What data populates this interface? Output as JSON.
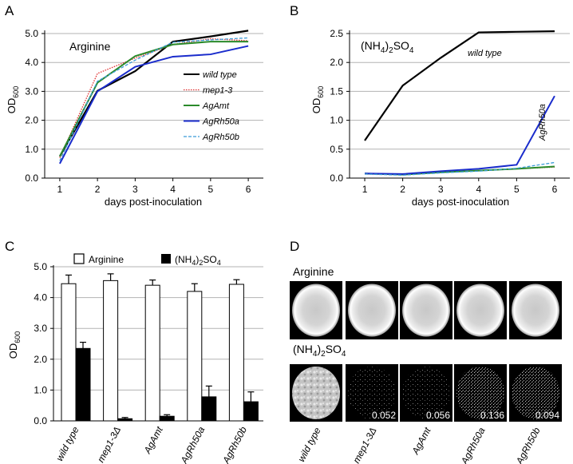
{
  "panels": {
    "A": {
      "letter": "A"
    },
    "B": {
      "letter": "B"
    },
    "C": {
      "letter": "C"
    },
    "D": {
      "letter": "D",
      "row1_label": "Arginine",
      "row2_label": "(NH4)2SO4",
      "strains": [
        "wild type",
        "mep1-3Δ",
        "AgAmt",
        "AgRh50a",
        "AgRh50b"
      ],
      "values": [
        "",
        "0.052",
        "0.056",
        "0.136",
        "0.094"
      ]
    }
  },
  "chart_data": [
    {
      "id": "A",
      "type": "line",
      "inset_label": "Arginine",
      "xlabel": "days post-inoculation",
      "ylabel": "OD600",
      "x": [
        1,
        2,
        3,
        4,
        5,
        6
      ],
      "ylim": [
        0.0,
        5.0
      ],
      "yticks": [
        "0.0",
        "1.0",
        "2.0",
        "3.0",
        "4.0",
        "5.0"
      ],
      "grid": true,
      "legend": "right",
      "series": [
        {
          "name": "wild type",
          "color": "#000000",
          "style": "solid",
          "values": [
            0.75,
            3.02,
            3.7,
            4.72,
            4.9,
            5.1
          ]
        },
        {
          "name": "mep1-3",
          "color": "#e03030",
          "style": "dotted",
          "values": [
            0.7,
            3.62,
            4.15,
            4.62,
            4.82,
            4.75
          ]
        },
        {
          "name": "AgAmt",
          "color": "#2a8a2a",
          "style": "solid",
          "values": [
            0.75,
            3.3,
            4.22,
            4.62,
            4.72,
            4.72
          ]
        },
        {
          "name": "AgRh50a",
          "color": "#1a2ccc",
          "style": "solid",
          "values": [
            0.5,
            3.0,
            3.85,
            4.2,
            4.28,
            4.57
          ]
        },
        {
          "name": "AgRh50b",
          "color": "#3b9bd6",
          "style": "dashed",
          "values": [
            0.6,
            3.35,
            4.08,
            4.7,
            4.78,
            4.85
          ]
        }
      ]
    },
    {
      "id": "B",
      "type": "line",
      "inset_label": "(NH4)2SO4",
      "xlabel": "days post-inoculation",
      "ylabel": "OD600",
      "x": [
        1,
        2,
        3,
        4,
        5,
        6
      ],
      "ylim": [
        0.0,
        2.5
      ],
      "yticks": [
        "0.0",
        "0.5",
        "1.0",
        "1.5",
        "2.0",
        "2.5"
      ],
      "grid": true,
      "annotations": [
        "wild type",
        "AgRh50a"
      ],
      "series": [
        {
          "name": "wild type",
          "color": "#000000",
          "style": "solid",
          "values": [
            0.65,
            1.6,
            2.08,
            2.52,
            2.53,
            2.54
          ]
        },
        {
          "name": "mep1-3",
          "color": "#e03030",
          "style": "dotted",
          "values": [
            0.07,
            0.06,
            0.1,
            0.13,
            0.16,
            0.19
          ]
        },
        {
          "name": "AgAmt",
          "color": "#2a8a2a",
          "style": "solid",
          "values": [
            0.08,
            0.06,
            0.1,
            0.13,
            0.16,
            0.2
          ]
        },
        {
          "name": "AgRh50a",
          "color": "#1a2ccc",
          "style": "solid",
          "values": [
            0.08,
            0.07,
            0.12,
            0.16,
            0.23,
            1.42
          ]
        },
        {
          "name": "AgRh50b",
          "color": "#3b9bd6",
          "style": "dashed",
          "values": [
            0.07,
            0.05,
            0.09,
            0.12,
            0.17,
            0.27
          ]
        }
      ]
    },
    {
      "id": "C",
      "type": "bar",
      "ylabel": "OD600",
      "ylim": [
        0.0,
        5.0
      ],
      "yticks": [
        "0.0",
        "1.0",
        "2.0",
        "3.0",
        "4.0",
        "5.0"
      ],
      "grid": true,
      "legend": "top",
      "categories": [
        "wild type",
        "mep1-3Δ",
        "AgAmt",
        "AgRh50a",
        "AgRh50b"
      ],
      "series": [
        {
          "name": "Arginine",
          "fill": "#ffffff",
          "values": [
            4.45,
            4.55,
            4.4,
            4.2,
            4.43
          ],
          "errors": [
            0.28,
            0.22,
            0.17,
            0.25,
            0.15
          ]
        },
        {
          "name": "(NH4)2SO4",
          "fill": "#000000",
          "values": [
            2.35,
            0.07,
            0.15,
            0.78,
            0.62
          ],
          "errors": [
            0.2,
            0.04,
            0.05,
            0.35,
            0.32
          ]
        }
      ]
    }
  ]
}
